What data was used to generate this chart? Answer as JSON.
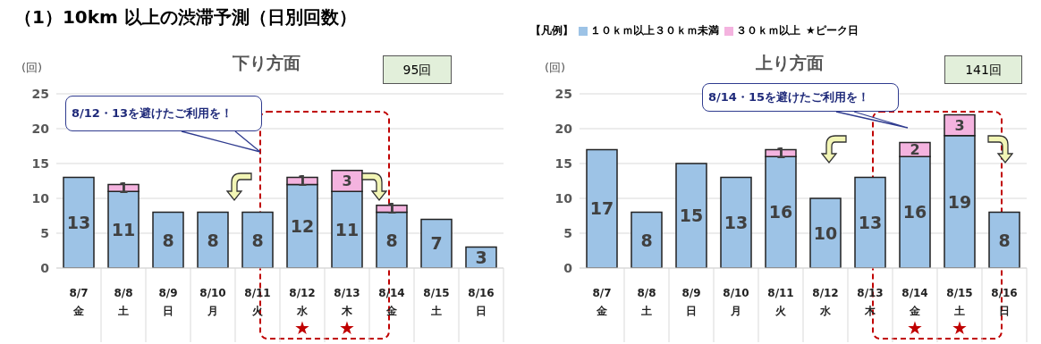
{
  "chart_data": [
    {
      "type": "bar",
      "title": "（1）10km 以上の渋滞予測（日別回数）",
      "subtitle": "下り方面",
      "ylabel": "(回)",
      "stacked": true,
      "data_labels": true,
      "legend": false,
      "grid": "y",
      "ylim": [
        0,
        25
      ],
      "yticks": [
        0,
        5,
        10,
        15,
        20,
        25
      ],
      "categories": [
        "8/7 金",
        "8/8 土",
        "8/9 日",
        "8/10 月",
        "8/11 火",
        "8/12 水",
        "8/13 木",
        "8/14 金",
        "8/15 土",
        "8/16 日"
      ],
      "series": [
        {
          "color": "#9dc3e6",
          "values": [
            13,
            11,
            8,
            8,
            8,
            12,
            11,
            8,
            7,
            3
          ]
        },
        {
          "color": "#f4b3df",
          "values": [
            null,
            1,
            null,
            null,
            null,
            1,
            3,
            1,
            null,
            null
          ]
        }
      ],
      "annotations": [
        "95回",
        "8/12・13を避けたご利用を！",
        "★",
        "★"
      ]
    },
    {
      "type": "bar",
      "subtitle": "上り方面",
      "ylabel": "(回)",
      "stacked": true,
      "data_labels": true,
      "legend": "top",
      "legend_title": "【凡例】",
      "grid": "y",
      "ylim": [
        0,
        25
      ],
      "yticks": [
        0,
        5,
        10,
        15,
        20,
        25
      ],
      "categories": [
        "8/7 金",
        "8/8 土",
        "8/9 日",
        "8/10 月",
        "8/11 火",
        "8/12 水",
        "8/13 木",
        "8/14 金",
        "8/15 土",
        "8/16 日"
      ],
      "series": [
        {
          "name": "１０ｋｍ以上３０ｋｍ未満",
          "color": "#9dc3e6",
          "values": [
            17,
            8,
            15,
            13,
            16,
            10,
            13,
            16,
            19,
            8
          ]
        },
        {
          "name": "３０ｋｍ以上",
          "color": "#f4b3df",
          "values": [
            null,
            null,
            null,
            null,
            1,
            null,
            null,
            2,
            3,
            null
          ]
        }
      ],
      "annotations": [
        "141回",
        "8/14・15を避けたご利用を！",
        "★ピーク日",
        "★",
        "★"
      ]
    }
  ]
}
